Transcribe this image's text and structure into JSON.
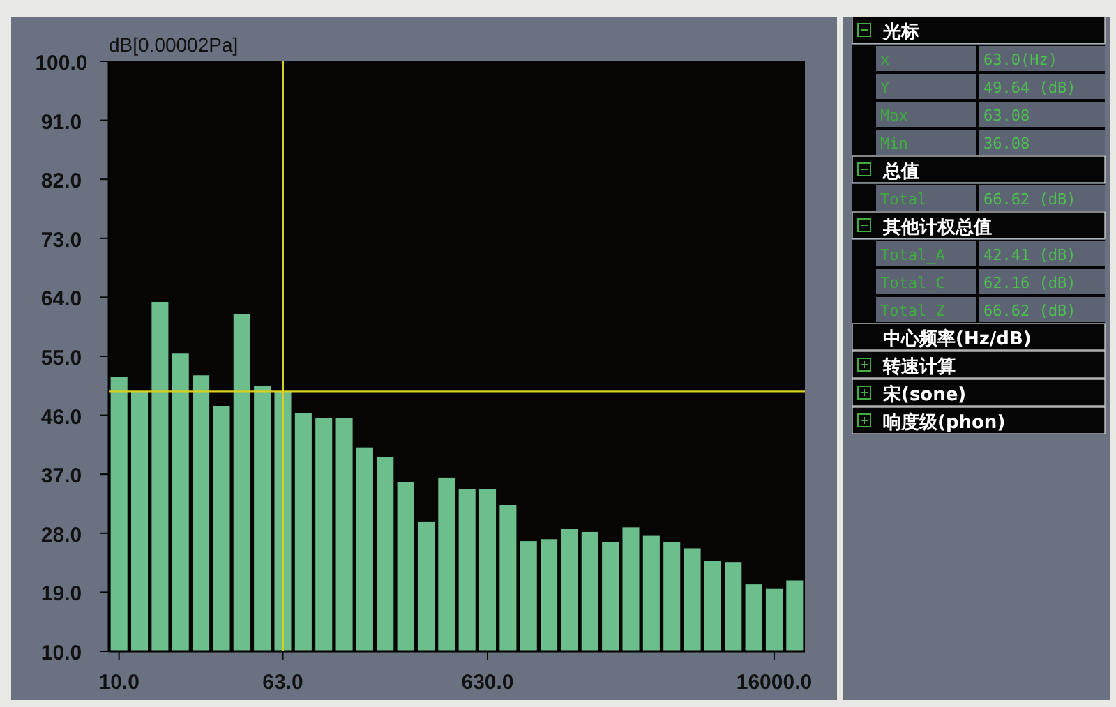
{
  "chart_data": [
    {
      "type": "bar",
      "ylabel": "dB[0.00002Pa]",
      "color": "#6cbf8c",
      "categories": [
        "10.0",
        null,
        null,
        null,
        null,
        null,
        null,
        null,
        "63.0",
        null,
        null,
        null,
        null,
        null,
        null,
        null,
        null,
        null,
        "630.0",
        null,
        null,
        null,
        null,
        null,
        null,
        null,
        null,
        null,
        null,
        null,
        null,
        null,
        "16000.0",
        null
      ],
      "values": [
        51.9,
        49.6,
        63.3,
        55.4,
        52.1,
        47.4,
        61.4,
        50.5,
        49.6,
        46.3,
        45.6,
        45.6,
        41.1,
        39.6,
        35.8,
        29.8,
        36.5,
        34.7,
        34.7,
        32.3,
        26.8,
        27.1,
        28.7,
        28.2,
        26.6,
        28.9,
        27.6,
        26.6,
        25.7,
        23.8,
        23.6,
        20.2,
        19.5,
        20.8
      ],
      "ylim": [
        10,
        100
      ],
      "yticks": [
        {
          "value": 10,
          "label": "10.0"
        },
        {
          "value": 19,
          "label": "19.0"
        },
        {
          "value": 28,
          "label": "28.0"
        },
        {
          "value": 37,
          "label": "37.0"
        },
        {
          "value": 46,
          "label": "46.0"
        },
        {
          "value": 55,
          "label": "55.0"
        },
        {
          "value": 64,
          "label": "64.0"
        },
        {
          "value": 73,
          "label": "73.0"
        },
        {
          "value": 82,
          "label": "82.0"
        },
        {
          "value": 91,
          "label": "91.0"
        },
        {
          "value": 100,
          "label": "100.0"
        }
      ],
      "ref_lines": [
        {
          "axis": "x",
          "value": "63.0",
          "color": "#d8d020"
        },
        {
          "axis": "y",
          "value": 49.64,
          "color": "#d8d020"
        }
      ]
    },
    {
      "type": "other",
      "annotations": [
        "光标",
        "x",
        "63.0(Hz)",
        "Y",
        "49.64 (dB)",
        "Max",
        "63.08",
        "Min",
        "36.08",
        "总值",
        "Total",
        "66.62 (dB)",
        "其他计权总值",
        "Total_A",
        "42.41 (dB)",
        "Total_C",
        "62.16 (dB)",
        "Total_Z",
        "66.62 (dB)",
        "中心频率(Hz/dB)",
        "转速计算",
        "宋(sone)",
        "响度级(phon)"
      ]
    }
  ]
}
